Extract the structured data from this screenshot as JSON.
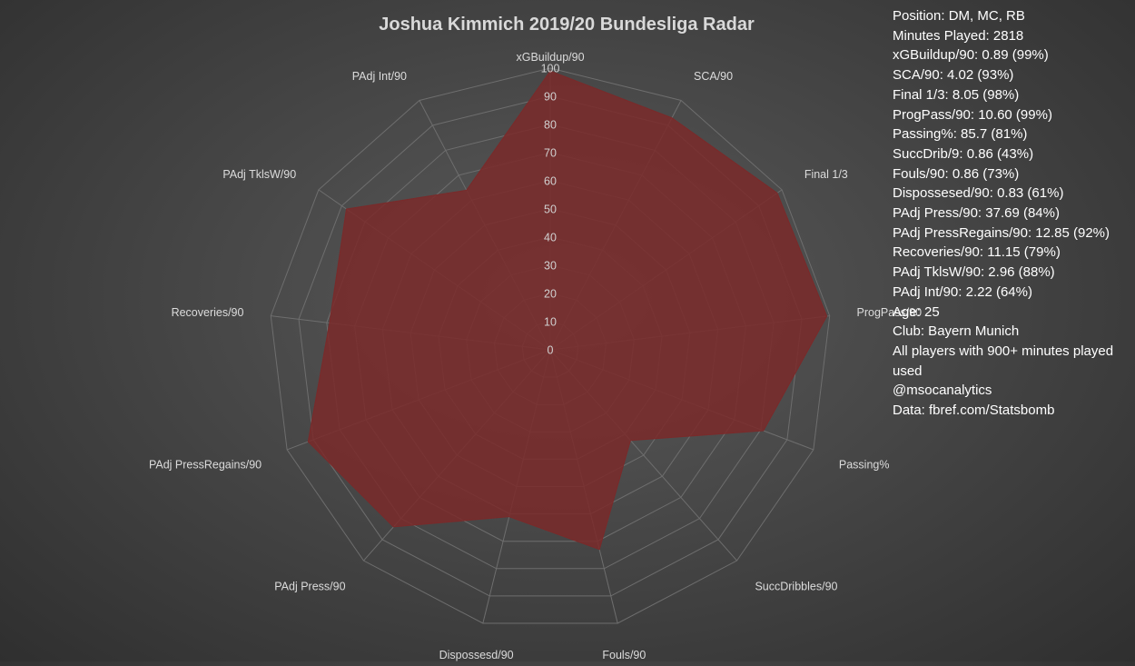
{
  "chart_data": {
    "type": "radar",
    "title": "Joshua Kimmich 2019/20 Bundesliga Radar",
    "axes": [
      "xGBuildup/90",
      "SCA/90",
      "Final 1/3",
      "ProgPass/90",
      "Passing%",
      "SuccDribbles/90",
      "Fouls/90",
      "Dispossesd/90",
      "PAdj Press/90",
      "PAdj PressRegains/90",
      "Recoveries/90",
      "PAdj TklsW/90",
      "PAdj Int/90"
    ],
    "range": [
      0,
      100
    ],
    "ticks": [
      "0",
      "10",
      "20",
      "30",
      "40",
      "50",
      "60",
      "70",
      "80",
      "90",
      "100"
    ],
    "series": [
      {
        "values": [
          99,
          93,
          98,
          99,
          81,
          43,
          73,
          61,
          84,
          92,
          79,
          88,
          64
        ]
      }
    ],
    "grid": true,
    "legend": "none",
    "fill_color": "#7a2a2a"
  },
  "info": {
    "lines": [
      "Position: DM, MC, RB",
      "Minutes Played: 2818",
      "xGBuildup/90: 0.89 (99%)",
      "SCA/90: 4.02 (93%)",
      "Final 1/3: 8.05 (98%)",
      "ProgPass/90: 10.60 (99%)",
      "Passing%: 85.7 (81%)",
      "SuccDrib/9: 0.86 (43%)",
      "Fouls/90: 0.86 (73%)",
      "Dispossesed/90: 0.83 (61%)",
      "PAdj Press/90: 37.69 (84%)",
      "PAdj PressRegains/90: 12.85 (92%)",
      "Recoveries/90: 11.15 (79%)",
      "PAdj TklsW/90: 2.96 (88%)",
      "PAdj Int/90: 2.22 (64%)",
      "Age: 25",
      "Club: Bayern Munich",
      "All players with 900+ minutes played used",
      "@msocanalytics",
      "Data: fbref.com/Statsbomb"
    ]
  }
}
